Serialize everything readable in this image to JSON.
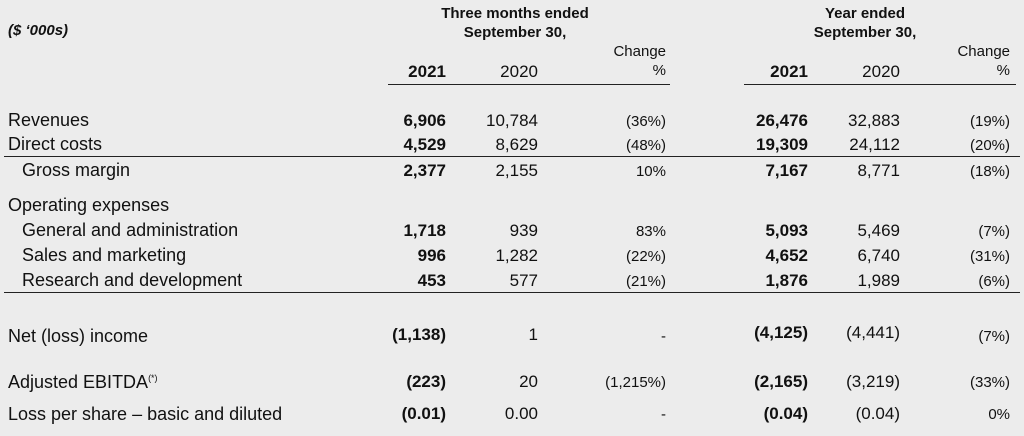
{
  "unit_label": "($ ‘000s)",
  "header": {
    "q_title_1": "Three months ended",
    "q_title_2": "September 30,",
    "y_title_1": "Year ended",
    "y_title_2": "September 30,",
    "change_1": "Change",
    "change_2": "%",
    "y2021": "2021",
    "y2020": "2020"
  },
  "rows": [
    {
      "label": "Revenues",
      "q21": "6,906",
      "q20": "10,784",
      "qchg": "(36%)",
      "y21": "26,476",
      "y20": "32,883",
      "ychg": "(19%)"
    },
    {
      "label": "Direct costs",
      "q21": "4,529",
      "q20": "8,629",
      "qchg": "(48%)",
      "y21": "19,309",
      "y20": "24,112",
      "ychg": "(20%)"
    },
    {
      "label": "Gross margin",
      "q21": "2,377",
      "q20": "2,155",
      "qchg": "10%",
      "y21": "7,167",
      "y20": "8,771",
      "ychg": "(18%)"
    },
    {
      "label": "Operating expenses"
    },
    {
      "label": "General and administration",
      "q21": "1,718",
      "q20": "939",
      "qchg": "83%",
      "y21": "5,093",
      "y20": "5,469",
      "ychg": "(7%)"
    },
    {
      "label": "Sales and marketing",
      "q21": "996",
      "q20": "1,282",
      "qchg": "(22%)",
      "y21": "4,652",
      "y20": "6,740",
      "ychg": "(31%)"
    },
    {
      "label": "Research and development",
      "q21": "453",
      "q20": "577",
      "qchg": "(21%)",
      "y21": "1,876",
      "y20": "1,989",
      "ychg": "(6%)"
    },
    {
      "label": "Net (loss) income",
      "q21": "(1,138)",
      "q20": "1",
      "qchg": "-",
      "y21": "(4,125)",
      "y20": "(4,441)",
      "ychg": "(7%)"
    },
    {
      "label": "Adjusted EBITDA",
      "sup": "(*)",
      "q21": "(223)",
      "q20": "20",
      "qchg": "(1,215%)",
      "y21": "(2,165)",
      "y20": "(3,219)",
      "ychg": "(33%)"
    },
    {
      "label": "Loss per share – basic and diluted",
      "q21": "(0.01)",
      "q20": "0.00",
      "qchg": "-",
      "y21": "(0.04)",
      "y20": "(0.04)",
      "ychg": "0%"
    }
  ]
}
